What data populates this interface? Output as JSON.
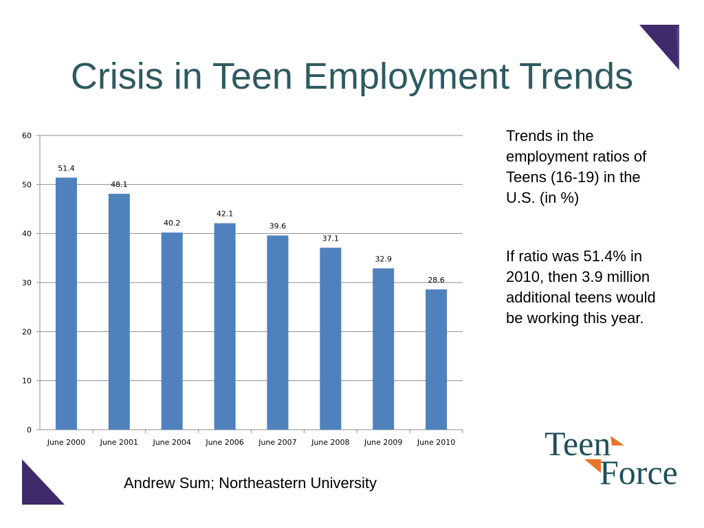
{
  "title": "Crisis in Teen Employment Trends",
  "sidebar": {
    "paragraph1": "Trends in the employment ratios of Teens (16-19) in the U.S. (in %)",
    "paragraph2": "If ratio was 51.4% in 2010, then 3.9 million additional teens would be working this year."
  },
  "footer": {
    "source": "Andrew Sum; Northeastern University"
  },
  "logo": {
    "word1": "Teen",
    "word2": "Force"
  },
  "colors": {
    "title": "#2e5a60",
    "bar": "#4f81bd",
    "accent_purple": "#3f2a6b",
    "logo_teal": "#1f4f57",
    "logo_orange": "#e8742a"
  },
  "chart_data": {
    "type": "bar",
    "categories": [
      "June 2000",
      "June 2001",
      "June 2004",
      "June 2006",
      "June 2007",
      "June 2008",
      "June 2009",
      "June 2010"
    ],
    "values": [
      51.4,
      48.1,
      40.2,
      42.1,
      39.6,
      37.1,
      32.9,
      28.6
    ],
    "data_labels": [
      "51.4",
      "48.1",
      "40.2",
      "42.1",
      "39.6",
      "37.1",
      "32.9",
      "28.6"
    ],
    "ylim": [
      0,
      60
    ],
    "yticks": [
      0,
      10,
      20,
      30,
      40,
      50,
      60
    ],
    "ytick_labels": [
      "0",
      "10",
      "20",
      "30",
      "40",
      "50",
      "60"
    ],
    "grid": true,
    "legend": "none"
  }
}
